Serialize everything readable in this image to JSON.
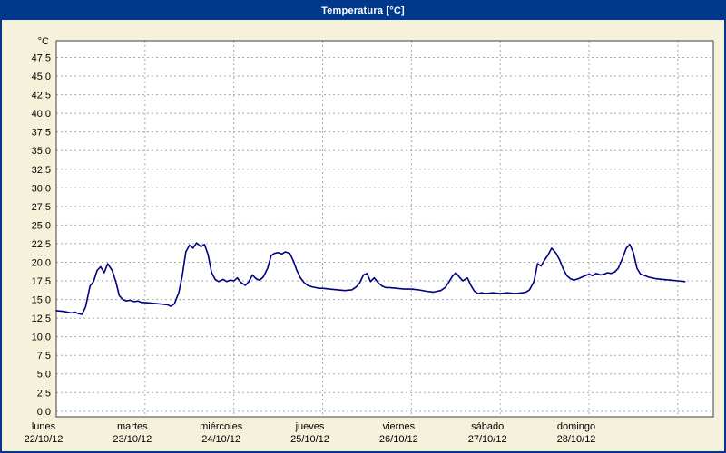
{
  "window": {
    "title": "Temperatura [°C]"
  },
  "colors": {
    "titlebar": "#00388C",
    "panel-bg": "#F5F1DB",
    "plot-bg": "#FFFFFF",
    "grid": "#A8A8A8",
    "plot-border": "#404040",
    "line": "#000080",
    "text": "#000000"
  },
  "chart_data": {
    "type": "line",
    "title": "Temperatura [°C]",
    "xlabel": "",
    "ylabel": "°C",
    "grid": "dashed",
    "legend": "none",
    "ylim": [
      -0.75,
      49.75
    ],
    "y_tick_min": 0,
    "y_tick_max": 47.5,
    "y_tick_step": 2.5,
    "y_tick_labels": [
      "0,0",
      "2,5",
      "5,0",
      "7,5",
      "10,0",
      "12,5",
      "15,0",
      "17,5",
      "20,0",
      "22,5",
      "25,0",
      "27,5",
      "30,0",
      "32,5",
      "35,0",
      "37,5",
      "40,0",
      "42,5",
      "45,0",
      "47,5"
    ],
    "x_range_days": [
      0,
      7.4
    ],
    "x_grid_days": [
      1,
      2,
      3,
      4,
      5,
      6,
      7
    ],
    "x_day_ticks": [
      {
        "day": 0,
        "name": "lunes",
        "date": "22/10/12"
      },
      {
        "day": 1,
        "name": "martes",
        "date": "23/10/12"
      },
      {
        "day": 2,
        "name": "miércoles",
        "date": "24/10/12"
      },
      {
        "day": 3,
        "name": "jueves",
        "date": "25/10/12"
      },
      {
        "day": 4,
        "name": "viernes",
        "date": "26/10/12"
      },
      {
        "day": 5,
        "name": "sábado",
        "date": "27/10/12"
      },
      {
        "day": 6,
        "name": "domingo",
        "date": "28/10/12"
      }
    ],
    "series": [
      {
        "name": "Temperatura",
        "color": "#000080",
        "points": [
          [
            0.0,
            13.5
          ],
          [
            0.08,
            13.4
          ],
          [
            0.17,
            13.2
          ],
          [
            0.21,
            13.3
          ],
          [
            0.25,
            13.1
          ],
          [
            0.29,
            13.0
          ],
          [
            0.33,
            14.0
          ],
          [
            0.38,
            16.8
          ],
          [
            0.42,
            17.4
          ],
          [
            0.46,
            18.9
          ],
          [
            0.5,
            19.4
          ],
          [
            0.54,
            18.6
          ],
          [
            0.58,
            19.8
          ],
          [
            0.63,
            18.9
          ],
          [
            0.67,
            17.4
          ],
          [
            0.71,
            15.5
          ],
          [
            0.75,
            15.0
          ],
          [
            0.79,
            14.8
          ],
          [
            0.83,
            14.9
          ],
          [
            0.88,
            14.7
          ],
          [
            0.92,
            14.8
          ],
          [
            0.96,
            14.6
          ],
          [
            1.0,
            14.6
          ],
          [
            1.08,
            14.5
          ],
          [
            1.17,
            14.4
          ],
          [
            1.25,
            14.3
          ],
          [
            1.29,
            14.1
          ],
          [
            1.33,
            14.4
          ],
          [
            1.38,
            15.9
          ],
          [
            1.42,
            18.2
          ],
          [
            1.46,
            21.4
          ],
          [
            1.5,
            22.3
          ],
          [
            1.54,
            21.9
          ],
          [
            1.58,
            22.6
          ],
          [
            1.63,
            22.1
          ],
          [
            1.67,
            22.4
          ],
          [
            1.71,
            21.0
          ],
          [
            1.75,
            18.6
          ],
          [
            1.79,
            17.7
          ],
          [
            1.83,
            17.4
          ],
          [
            1.88,
            17.7
          ],
          [
            1.92,
            17.4
          ],
          [
            1.96,
            17.6
          ],
          [
            2.0,
            17.5
          ],
          [
            2.04,
            17.9
          ],
          [
            2.08,
            17.3
          ],
          [
            2.13,
            16.9
          ],
          [
            2.17,
            17.4
          ],
          [
            2.21,
            18.3
          ],
          [
            2.25,
            17.8
          ],
          [
            2.29,
            17.6
          ],
          [
            2.33,
            18.0
          ],
          [
            2.38,
            19.2
          ],
          [
            2.42,
            20.9
          ],
          [
            2.46,
            21.2
          ],
          [
            2.5,
            21.3
          ],
          [
            2.54,
            21.1
          ],
          [
            2.58,
            21.4
          ],
          [
            2.63,
            21.2
          ],
          [
            2.67,
            20.2
          ],
          [
            2.71,
            18.9
          ],
          [
            2.75,
            17.9
          ],
          [
            2.79,
            17.3
          ],
          [
            2.83,
            16.9
          ],
          [
            2.88,
            16.7
          ],
          [
            2.92,
            16.6
          ],
          [
            2.96,
            16.5
          ],
          [
            3.0,
            16.5
          ],
          [
            3.08,
            16.4
          ],
          [
            3.17,
            16.3
          ],
          [
            3.25,
            16.2
          ],
          [
            3.33,
            16.3
          ],
          [
            3.38,
            16.7
          ],
          [
            3.42,
            17.3
          ],
          [
            3.46,
            18.3
          ],
          [
            3.5,
            18.5
          ],
          [
            3.54,
            17.4
          ],
          [
            3.58,
            17.9
          ],
          [
            3.63,
            17.2
          ],
          [
            3.67,
            16.8
          ],
          [
            3.71,
            16.6
          ],
          [
            3.75,
            16.6
          ],
          [
            3.83,
            16.5
          ],
          [
            3.92,
            16.4
          ],
          [
            4.0,
            16.4
          ],
          [
            4.08,
            16.3
          ],
          [
            4.17,
            16.1
          ],
          [
            4.25,
            16.0
          ],
          [
            4.33,
            16.2
          ],
          [
            4.38,
            16.6
          ],
          [
            4.42,
            17.3
          ],
          [
            4.46,
            18.1
          ],
          [
            4.5,
            18.6
          ],
          [
            4.54,
            18.0
          ],
          [
            4.58,
            17.5
          ],
          [
            4.63,
            17.9
          ],
          [
            4.67,
            16.9
          ],
          [
            4.71,
            16.1
          ],
          [
            4.75,
            15.8
          ],
          [
            4.79,
            15.9
          ],
          [
            4.83,
            15.8
          ],
          [
            4.92,
            15.9
          ],
          [
            5.0,
            15.8
          ],
          [
            5.08,
            15.9
          ],
          [
            5.17,
            15.8
          ],
          [
            5.25,
            15.9
          ],
          [
            5.29,
            16.0
          ],
          [
            5.33,
            16.3
          ],
          [
            5.38,
            17.4
          ],
          [
            5.42,
            19.8
          ],
          [
            5.46,
            19.5
          ],
          [
            5.5,
            20.3
          ],
          [
            5.54,
            21.0
          ],
          [
            5.58,
            21.9
          ],
          [
            5.63,
            21.2
          ],
          [
            5.67,
            20.3
          ],
          [
            5.71,
            19.1
          ],
          [
            5.75,
            18.2
          ],
          [
            5.79,
            17.8
          ],
          [
            5.83,
            17.6
          ],
          [
            5.88,
            17.8
          ],
          [
            5.92,
            18.0
          ],
          [
            5.96,
            18.2
          ],
          [
            6.0,
            18.4
          ],
          [
            6.04,
            18.2
          ],
          [
            6.08,
            18.5
          ],
          [
            6.13,
            18.3
          ],
          [
            6.17,
            18.4
          ],
          [
            6.21,
            18.6
          ],
          [
            6.25,
            18.5
          ],
          [
            6.29,
            18.7
          ],
          [
            6.33,
            19.2
          ],
          [
            6.38,
            20.6
          ],
          [
            6.42,
            21.9
          ],
          [
            6.46,
            22.4
          ],
          [
            6.5,
            21.3
          ],
          [
            6.54,
            19.2
          ],
          [
            6.58,
            18.4
          ],
          [
            6.63,
            18.2
          ],
          [
            6.67,
            18.0
          ],
          [
            6.71,
            17.9
          ],
          [
            6.75,
            17.8
          ],
          [
            6.83,
            17.7
          ],
          [
            6.92,
            17.6
          ],
          [
            7.0,
            17.5
          ],
          [
            7.08,
            17.4
          ]
        ]
      }
    ]
  }
}
